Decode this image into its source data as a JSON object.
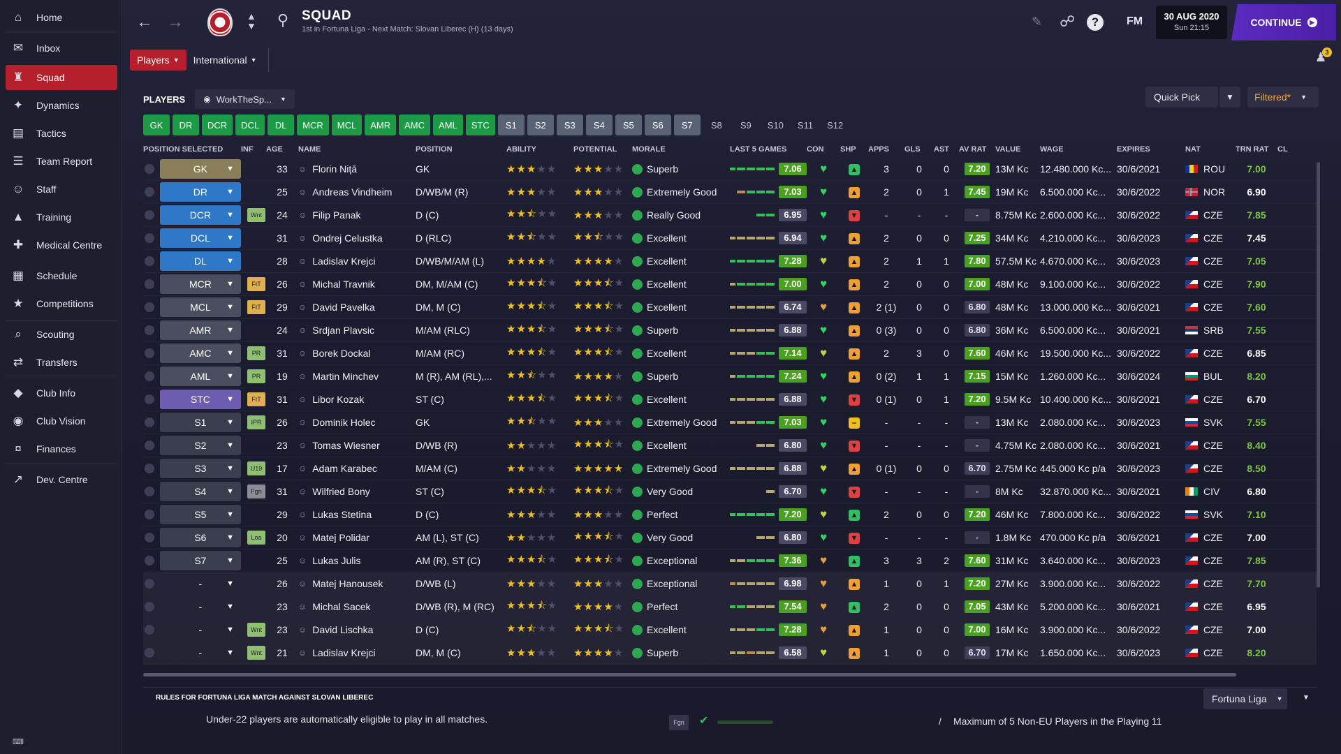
{
  "sidebar": {
    "items": [
      {
        "label": "Home",
        "icon": "home-icon"
      },
      {
        "label": "Inbox",
        "icon": "inbox-icon"
      },
      {
        "label": "Squad",
        "icon": "squad-icon"
      },
      {
        "label": "Dynamics",
        "icon": "dynamics-icon"
      },
      {
        "label": "Tactics",
        "icon": "tactics-icon"
      },
      {
        "label": "Team Report",
        "icon": "report-icon"
      },
      {
        "label": "Staff",
        "icon": "staff-icon"
      },
      {
        "label": "Training",
        "icon": "training-icon"
      },
      {
        "label": "Medical Centre",
        "icon": "medical-icon"
      },
      {
        "label": "Schedule",
        "icon": "schedule-icon"
      },
      {
        "label": "Competitions",
        "icon": "trophy-icon"
      },
      {
        "label": "Scouting",
        "icon": "scouting-icon"
      },
      {
        "label": "Transfers",
        "icon": "transfers-icon"
      },
      {
        "label": "Club Info",
        "icon": "club-info-icon"
      },
      {
        "label": "Club Vision",
        "icon": "club-vision-icon"
      },
      {
        "label": "Finances",
        "icon": "finances-icon"
      },
      {
        "label": "Dev. Centre",
        "icon": "dev-centre-icon"
      }
    ],
    "active": "Squad"
  },
  "header": {
    "title": "SQUAD",
    "subtitle": "1st in Fortuna Liga - Next Match: Slovan Liberec (H) (13 days)",
    "fm": "FM",
    "date": "30 AUG 2020",
    "time": "Sun 21:15",
    "continue": "CONTINUE",
    "notification_count": "3"
  },
  "subtabs": [
    "Players",
    "International"
  ],
  "players_bar": {
    "label": "PLAYERS",
    "view": "WorkTheSp..."
  },
  "quick_pick": "Quick Pick",
  "filter": "Filtered*",
  "chips": [
    {
      "label": "GK",
      "state": "g"
    },
    {
      "label": "DR",
      "state": "g"
    },
    {
      "label": "DCR",
      "state": "g"
    },
    {
      "label": "DCL",
      "state": "g"
    },
    {
      "label": "DL",
      "state": "g"
    },
    {
      "label": "MCR",
      "state": "g"
    },
    {
      "label": "MCL",
      "state": "g"
    },
    {
      "label": "AMR",
      "state": "g"
    },
    {
      "label": "AMC",
      "state": "g"
    },
    {
      "label": "AML",
      "state": "g"
    },
    {
      "label": "STC",
      "state": "g"
    },
    {
      "label": "S1",
      "state": "s"
    },
    {
      "label": "S2",
      "state": "s"
    },
    {
      "label": "S3",
      "state": "s"
    },
    {
      "label": "S4",
      "state": "s"
    },
    {
      "label": "S5",
      "state": "s"
    },
    {
      "label": "S6",
      "state": "s"
    },
    {
      "label": "S7",
      "state": "s"
    },
    {
      "label": "S8",
      "state": "e"
    },
    {
      "label": "S9",
      "state": "e"
    },
    {
      "label": "S10",
      "state": "e"
    },
    {
      "label": "S11",
      "state": "e"
    },
    {
      "label": "S12",
      "state": "e"
    }
  ],
  "columns": [
    "POSITION SELECTED",
    "INF",
    "AGE",
    "NAME",
    "POSITION",
    "ABILITY",
    "POTENTIAL",
    "MORALE",
    "LAST 5 GAMES",
    "CON",
    "SHP",
    "APPS",
    "GLS",
    "AST",
    "AV RAT",
    "VALUE",
    "WAGE",
    "EXPIRES",
    "NAT",
    "TRN RAT",
    "CL"
  ],
  "players": [
    {
      "sel": "GK",
      "selc": "gk",
      "inf": "",
      "infc": "",
      "age": "33",
      "name": "Florin Niță",
      "pos": "GK",
      "ab": 3,
      "po": 3,
      "morale": "Superb",
      "form": "ggggg",
      "last": "7.06",
      "lastc": "g",
      "con": "g",
      "shp": "gr",
      "apps": "3",
      "gls": "0",
      "ast": "0",
      "av": "7.20",
      "avc": "g",
      "value": "13M Kc",
      "wage": "12.480.000 Kc...",
      "exp": "30/6/2021",
      "nat": "ROU",
      "trn": "7.00"
    },
    {
      "sel": "DR",
      "selc": "def",
      "inf": "",
      "infc": "",
      "age": "25",
      "name": "Andreas Vindheim",
      "pos": "D/WB/M (R)",
      "ab": 3,
      "po": 3,
      "morale": "Extremely Good",
      "form": "oggg",
      "last": "7.03",
      "lastc": "g",
      "con": "g",
      "shp": "up",
      "apps": "2",
      "gls": "0",
      "ast": "1",
      "av": "7.45",
      "avc": "g",
      "value": "19M Kc",
      "wage": "6.500.000 Kc...",
      "exp": "30/6/2022",
      "nat": "NOR",
      "trn": "6.90"
    },
    {
      "sel": "DCR",
      "selc": "def",
      "inf": "Wnt",
      "infc": "wnt",
      "age": "24",
      "name": "Filip Panak",
      "pos": "D (C)",
      "ab": 2.5,
      "po": 3,
      "morale": "Really Good",
      "form": "gg",
      "last": "6.95",
      "lastc": "",
      "con": "g",
      "shp": "rd",
      "apps": "-",
      "gls": "-",
      "ast": "-",
      "av": "-",
      "avc": "n",
      "value": "8.75M Kc",
      "wage": "2.600.000 Kc...",
      "exp": "30/6/2022",
      "nat": "CZE",
      "trn": "7.85"
    },
    {
      "sel": "DCL",
      "selc": "def",
      "inf": "",
      "infc": "",
      "age": "31",
      "name": "Ondrej Celustka",
      "pos": "D (RLC)",
      "ab": 2.5,
      "po": 2.5,
      "morale": "Excellent",
      "form": "yyyyy",
      "last": "6.94",
      "lastc": "",
      "con": "g",
      "shp": "up",
      "apps": "2",
      "gls": "0",
      "ast": "0",
      "av": "7.25",
      "avc": "g",
      "value": "34M Kc",
      "wage": "4.210.000 Kc...",
      "exp": "30/6/2023",
      "nat": "CZE",
      "trn": "7.45"
    },
    {
      "sel": "DL",
      "selc": "def",
      "inf": "",
      "infc": "",
      "age": "28",
      "name": "Ladislav Krejci",
      "pos": "D/WB/M/AM (L)",
      "ab": 4,
      "po": 4,
      "morale": "Excellent",
      "form": "ggggg",
      "last": "7.28",
      "lastc": "g",
      "con": "y",
      "shp": "up",
      "apps": "2",
      "gls": "1",
      "ast": "1",
      "av": "7.80",
      "avc": "g",
      "value": "57.5M Kc",
      "wage": "4.670.000 Kc...",
      "exp": "30/6/2023",
      "nat": "CZE",
      "trn": "7.05"
    },
    {
      "sel": "MCR",
      "selc": "mid",
      "inf": "FtT",
      "infc": "ftt",
      "age": "26",
      "name": "Michal Travnik",
      "pos": "DM, M/AM (C)",
      "ab": 3.5,
      "po": 3.5,
      "morale": "Excellent",
      "form": "ygggg",
      "last": "7.00",
      "lastc": "g",
      "con": "g",
      "shp": "up",
      "apps": "2",
      "gls": "0",
      "ast": "0",
      "av": "7.00",
      "avc": "g",
      "value": "48M Kc",
      "wage": "9.100.000 Kc...",
      "exp": "30/6/2022",
      "nat": "CZE",
      "trn": "7.90"
    },
    {
      "sel": "MCL",
      "selc": "mid",
      "inf": "FtT",
      "infc": "ftt",
      "age": "29",
      "name": "David Pavelka",
      "pos": "DM, M (C)",
      "ab": 3.5,
      "po": 3.5,
      "morale": "Excellent",
      "form": "yyyyy",
      "last": "6.74",
      "lastc": "",
      "con": "o",
      "shp": "up",
      "apps": "2 (1)",
      "gls": "0",
      "ast": "0",
      "av": "6.80",
      "avc": "p",
      "value": "48M Kc",
      "wage": "13.000.000 Kc...",
      "exp": "30/6/2021",
      "nat": "CZE",
      "trn": "7.60"
    },
    {
      "sel": "AMR",
      "selc": "mid",
      "inf": "",
      "infc": "",
      "age": "24",
      "name": "Srdjan Plavsic",
      "pos": "M/AM (RLC)",
      "ab": 3.5,
      "po": 3.5,
      "morale": "Superb",
      "form": "yyyyy",
      "last": "6.88",
      "lastc": "",
      "con": "g",
      "shp": "up",
      "apps": "0 (3)",
      "gls": "0",
      "ast": "0",
      "av": "6.80",
      "avc": "p",
      "value": "36M Kc",
      "wage": "6.500.000 Kc...",
      "exp": "30/6/2021",
      "nat": "SRB",
      "trn": "7.55"
    },
    {
      "sel": "AMC",
      "selc": "mid",
      "inf": "PR",
      "infc": "pr",
      "age": "31",
      "name": "Borek Dockal",
      "pos": "M/AM (RC)",
      "ab": 3.5,
      "po": 3.5,
      "morale": "Excellent",
      "form": "yyygg",
      "last": "7.14",
      "lastc": "g",
      "con": "y",
      "shp": "up",
      "apps": "2",
      "gls": "3",
      "ast": "0",
      "av": "7.60",
      "avc": "g",
      "value": "46M Kc",
      "wage": "19.500.000 Kc...",
      "exp": "30/6/2022",
      "nat": "CZE",
      "trn": "6.85"
    },
    {
      "sel": "AML",
      "selc": "mid",
      "inf": "PR",
      "infc": "pr",
      "age": "19",
      "name": "Martin Minchev",
      "pos": "M (R), AM (RL),...",
      "ab": 2.5,
      "po": 4,
      "morale": "Superb",
      "form": "ygggg",
      "last": "7.24",
      "lastc": "g",
      "con": "g",
      "shp": "up",
      "apps": "0 (2)",
      "gls": "1",
      "ast": "1",
      "av": "7.15",
      "avc": "g",
      "value": "15M Kc",
      "wage": "1.260.000 Kc...",
      "exp": "30/6/2024",
      "nat": "BUL",
      "trn": "8.20"
    },
    {
      "sel": "STC",
      "selc": "st",
      "inf": "FtT",
      "infc": "ftt",
      "age": "31",
      "name": "Libor Kozak",
      "pos": "ST (C)",
      "ab": 3.5,
      "po": 3.5,
      "morale": "Excellent",
      "form": "yyyyy",
      "last": "6.88",
      "lastc": "",
      "con": "g",
      "shp": "rd",
      "apps": "0 (1)",
      "gls": "0",
      "ast": "1",
      "av": "7.20",
      "avc": "g",
      "value": "9.5M Kc",
      "wage": "10.400.000 Kc...",
      "exp": "30/6/2021",
      "nat": "CZE",
      "trn": "6.70"
    },
    {
      "sel": "S1",
      "selc": "sub",
      "inf": "IPR",
      "infc": "ipr",
      "age": "26",
      "name": "Dominik Holec",
      "pos": "GK",
      "ab": 2.5,
      "po": 3,
      "morale": "Extremely Good",
      "form": "yyygg",
      "last": "7.03",
      "lastc": "g",
      "con": "g",
      "shp": "yl",
      "apps": "-",
      "gls": "-",
      "ast": "-",
      "av": "-",
      "avc": "n",
      "value": "13M Kc",
      "wage": "2.080.000 Kc...",
      "exp": "30/6/2023",
      "nat": "SVK",
      "trn": "7.55"
    },
    {
      "sel": "S2",
      "selc": "sub",
      "inf": "",
      "infc": "",
      "age": "23",
      "name": "Tomas Wiesner",
      "pos": "D/WB (R)",
      "ab": 2,
      "po": 3.5,
      "morale": "Excellent",
      "form": "yy",
      "last": "6.80",
      "lastc": "",
      "con": "g",
      "shp": "rd",
      "apps": "-",
      "gls": "-",
      "ast": "-",
      "av": "-",
      "avc": "n",
      "value": "4.75M Kc",
      "wage": "2.080.000 Kc...",
      "exp": "30/6/2021",
      "nat": "CZE",
      "trn": "8.40"
    },
    {
      "sel": "S3",
      "selc": "sub",
      "inf": "U19",
      "infc": "u19",
      "age": "17",
      "name": "Adam Karabec",
      "pos": "M/AM (C)",
      "ab": 2,
      "po": 5,
      "morale": "Extremely Good",
      "form": "yyyyy",
      "last": "6.88",
      "lastc": "",
      "con": "y",
      "shp": "up",
      "apps": "0 (1)",
      "gls": "0",
      "ast": "0",
      "av": "6.70",
      "avc": "p",
      "value": "2.75M Kc",
      "wage": "445.000 Kc p/a",
      "exp": "30/6/2023",
      "nat": "CZE",
      "trn": "8.50"
    },
    {
      "sel": "S4",
      "selc": "sub",
      "inf": "Fgn",
      "infc": "fgn",
      "age": "31",
      "name": "Wilfried Bony",
      "pos": "ST (C)",
      "ab": 3.5,
      "po": 3.5,
      "morale": "Very Good",
      "form": "y",
      "last": "6.70",
      "lastc": "",
      "con": "g",
      "shp": "rd",
      "apps": "-",
      "gls": "-",
      "ast": "-",
      "av": "-",
      "avc": "n",
      "value": "8M Kc",
      "wage": "32.870.000 Kc...",
      "exp": "30/6/2021",
      "nat": "CIV",
      "trn": "6.80"
    },
    {
      "sel": "S5",
      "selc": "sub",
      "inf": "",
      "infc": "",
      "age": "29",
      "name": "Lukas Stetina",
      "pos": "D (C)",
      "ab": 3,
      "po": 3,
      "morale": "Perfect",
      "form": "ggggg",
      "last": "7.20",
      "lastc": "g",
      "con": "y",
      "shp": "gr",
      "apps": "2",
      "gls": "0",
      "ast": "0",
      "av": "7.20",
      "avc": "g",
      "value": "46M Kc",
      "wage": "7.800.000 Kc...",
      "exp": "30/6/2022",
      "nat": "SVK",
      "trn": "7.10"
    },
    {
      "sel": "S6",
      "selc": "sub",
      "inf": "Loa",
      "infc": "loa",
      "age": "20",
      "name": "Matej Polidar",
      "pos": "AM (L), ST (C)",
      "ab": 2,
      "po": 3.5,
      "morale": "Very Good",
      "form": "yy",
      "last": "6.80",
      "lastc": "",
      "con": "g",
      "shp": "rd",
      "apps": "-",
      "gls": "-",
      "ast": "-",
      "av": "-",
      "avc": "n",
      "value": "1.8M Kc",
      "wage": "470.000 Kc p/a",
      "exp": "30/6/2021",
      "nat": "CZE",
      "trn": "7.00"
    },
    {
      "sel": "S7",
      "selc": "sub",
      "inf": "",
      "infc": "",
      "age": "25",
      "name": "Lukas Julis",
      "pos": "AM (R), ST (C)",
      "ab": 3.5,
      "po": 3.5,
      "morale": "Exceptional",
      "form": "yyggg",
      "last": "7.36",
      "lastc": "g",
      "con": "o",
      "shp": "gr",
      "apps": "3",
      "gls": "3",
      "ast": "2",
      "av": "7.60",
      "avc": "g",
      "value": "31M Kc",
      "wage": "3.640.000 Kc...",
      "exp": "30/6/2023",
      "nat": "CZE",
      "trn": "7.85"
    },
    {
      "sel": "-",
      "selc": "none",
      "inf": "",
      "infc": "",
      "age": "26",
      "name": "Matej Hanousek",
      "pos": "D/WB (L)",
      "ab": 3,
      "po": 3,
      "morale": "Exceptional",
      "form": "oyyyy",
      "last": "6.98",
      "lastc": "",
      "con": "o",
      "shp": "up",
      "apps": "1",
      "gls": "0",
      "ast": "1",
      "av": "7.20",
      "avc": "g",
      "value": "27M Kc",
      "wage": "3.900.000 Kc...",
      "exp": "30/6/2022",
      "nat": "CZE",
      "trn": "7.70"
    },
    {
      "sel": "-",
      "selc": "none",
      "inf": "",
      "infc": "",
      "age": "23",
      "name": "Michal Sacek",
      "pos": "D/WB (R), M (RC)",
      "ab": 3.5,
      "po": 4,
      "morale": "Perfect",
      "form": "ggyyy",
      "last": "7.54",
      "lastc": "g",
      "con": "o",
      "shp": "gr",
      "apps": "2",
      "gls": "0",
      "ast": "0",
      "av": "7.05",
      "avc": "g",
      "value": "43M Kc",
      "wage": "5.200.000 Kc...",
      "exp": "30/6/2021",
      "nat": "CZE",
      "trn": "6.95"
    },
    {
      "sel": "-",
      "selc": "none",
      "inf": "Wnt",
      "infc": "wnt",
      "age": "23",
      "name": "David Lischka",
      "pos": "D (C)",
      "ab": 2.5,
      "po": 3.5,
      "morale": "Excellent",
      "form": "yyygg",
      "last": "7.28",
      "lastc": "g",
      "con": "o",
      "shp": "up",
      "apps": "1",
      "gls": "0",
      "ast": "0",
      "av": "7.00",
      "avc": "g",
      "value": "16M Kc",
      "wage": "3.900.000 Kc...",
      "exp": "30/6/2022",
      "nat": "CZE",
      "trn": "7.00"
    },
    {
      "sel": "-",
      "selc": "none",
      "inf": "Wnt",
      "infc": "wnt",
      "age": "21",
      "name": "Ladislav Krejci",
      "pos": "DM, M (C)",
      "ab": 3,
      "po": 4,
      "morale": "Superb",
      "form": "yyoyy",
      "last": "6.58",
      "lastc": "",
      "con": "y",
      "shp": "up",
      "apps": "1",
      "gls": "0",
      "ast": "0",
      "av": "6.70",
      "avc": "p",
      "value": "17M Kc",
      "wage": "1.650.000 Kc...",
      "exp": "30/6/2023",
      "nat": "CZE",
      "trn": "8.20"
    }
  ],
  "rules": {
    "title": "RULES FOR FORTUNA LIGA MATCH AGAINST SLOVAN LIBEREC",
    "text": "Under-22 players are automatically eligible to play in all matches.",
    "fgn": "Fgn",
    "separator": "/",
    "max": "Maximum of 5 Non-EU Players in the Playing 11",
    "league": "Fortuna Liga"
  },
  "colors": {
    "accent_red": "#b5202c",
    "continue_purple": "#5c2ac0",
    "chip_green": "#1c9a45"
  }
}
